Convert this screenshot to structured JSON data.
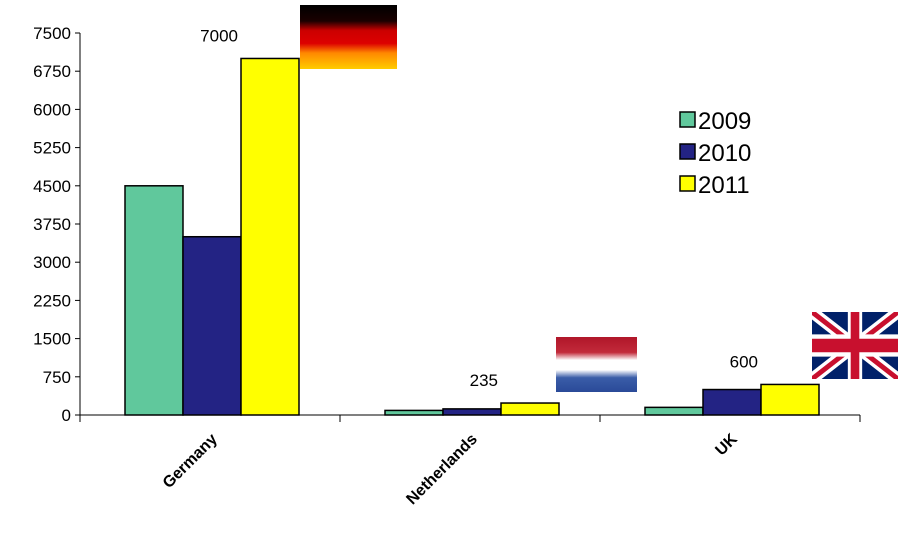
{
  "chart_data": {
    "type": "bar",
    "categories": [
      "Germany",
      "Netherlands",
      "UK"
    ],
    "series": [
      {
        "name": "2009",
        "color": "#60C89C",
        "values": [
          4500,
          90,
          150
        ]
      },
      {
        "name": "2010",
        "color": "#232384",
        "values": [
          3500,
          120,
          500
        ]
      },
      {
        "name": "2011",
        "color": "#FFFF00",
        "values": [
          7000,
          235,
          600
        ]
      }
    ],
    "data_labels": [
      {
        "category": "Germany",
        "series": "2011",
        "text": "7000"
      },
      {
        "category": "Netherlands",
        "series": "2011",
        "text": "235"
      },
      {
        "category": "UK",
        "series": "2011",
        "text": "600"
      }
    ],
    "flags": [
      {
        "category": "Germany",
        "icon": "germany-flag-icon"
      },
      {
        "category": "Netherlands",
        "icon": "netherlands-flag-icon"
      },
      {
        "category": "UK",
        "icon": "uk-flag-icon"
      }
    ],
    "yticks": [
      0,
      750,
      1500,
      2250,
      3000,
      3750,
      4500,
      5250,
      6000,
      6750,
      7500
    ],
    "ylim": [
      0,
      7500
    ],
    "grid": false,
    "legend_position": "right"
  }
}
